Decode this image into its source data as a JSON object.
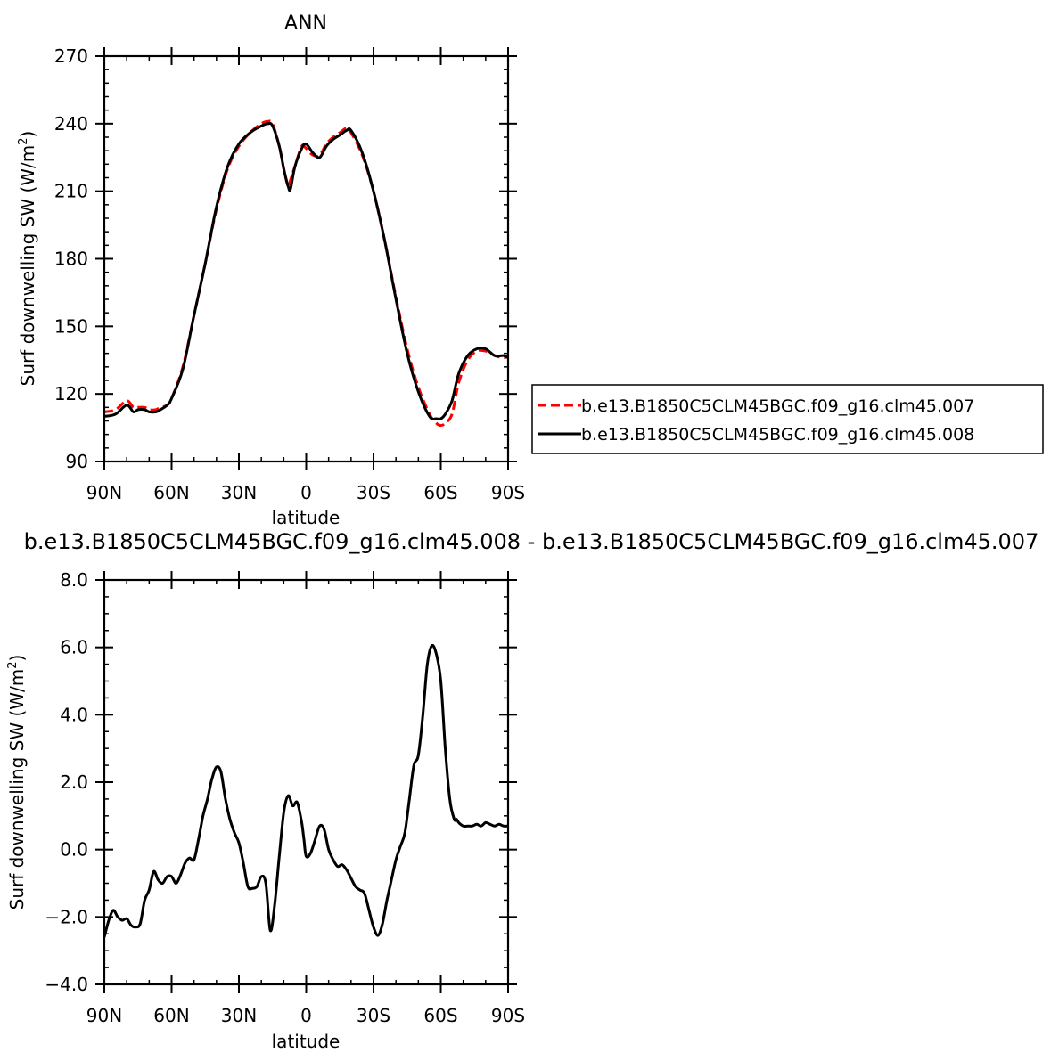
{
  "chart_data": [
    {
      "type": "line",
      "title": "ANN",
      "xlabel": "latitude",
      "ylabel_main": "Surf downwelling SW (W/m",
      "ylabel_sup": "2",
      "ylabel_tail": ")",
      "x_ticks": [
        90,
        60,
        30,
        0,
        -30,
        -60,
        -90
      ],
      "x_tick_labels": [
        "90N",
        "60N",
        "30N",
        "0",
        "30S",
        "60S",
        "90S"
      ],
      "xlim": [
        90,
        -90
      ],
      "ylim": [
        90,
        270
      ],
      "y_ticks": [
        90,
        120,
        150,
        180,
        210,
        240,
        270
      ],
      "y_tick_labels": [
        "90",
        "120",
        "150",
        "180",
        "210",
        "240",
        "270"
      ],
      "legend_position": "right",
      "series": [
        {
          "name": "b.e13.B1850C5CLM45BGC.f09_g16.clm45.007",
          "color": "#ff0000",
          "dash": "dashed",
          "x": [
            90,
            85,
            80,
            77,
            75,
            72,
            70,
            67,
            65,
            62,
            60,
            55,
            50,
            45,
            40,
            35,
            30,
            25,
            20,
            17,
            15,
            12,
            10,
            8,
            7,
            5,
            2,
            0,
            -3,
            -6,
            -9,
            -12,
            -15,
            -18,
            -20,
            -25,
            -30,
            -35,
            -40,
            -45,
            -50,
            -55,
            -58,
            -60,
            -62,
            -65,
            -68,
            -72,
            -76,
            -80,
            -84,
            -88,
            -90
          ],
          "y": [
            112,
            113,
            117,
            114,
            114,
            114,
            113,
            113,
            114,
            115,
            118,
            132,
            155,
            178,
            202,
            220,
            230,
            236,
            240,
            241,
            240,
            230,
            220,
            212,
            215,
            221,
            230,
            229,
            226,
            226,
            231,
            234,
            236,
            238,
            236,
            226,
            210,
            188,
            163,
            140,
            123,
            111,
            107,
            106,
            107,
            111,
            125,
            135,
            139,
            139,
            137,
            136,
            137
          ]
        },
        {
          "name": "b.e13.B1850C5CLM45BGC.f09_g16.clm45.008",
          "color": "#000000",
          "dash": "solid",
          "x": [
            90,
            85,
            80,
            77,
            75,
            72,
            70,
            67,
            65,
            62,
            60,
            55,
            50,
            45,
            40,
            35,
            30,
            25,
            20,
            17,
            15,
            12,
            10,
            8,
            7,
            5,
            2,
            0,
            -3,
            -6,
            -9,
            -12,
            -15,
            -18,
            -20,
            -25,
            -30,
            -35,
            -40,
            -45,
            -50,
            -55,
            -58,
            -60,
            -62,
            -65,
            -68,
            -72,
            -76,
            -80,
            -84,
            -88,
            -90
          ],
          "y": [
            110,
            111,
            115,
            112,
            113,
            113,
            112,
            112,
            113,
            115,
            118,
            131,
            155,
            178,
            203,
            221,
            231,
            236,
            239,
            240,
            239,
            230,
            220,
            212,
            211,
            221,
            229,
            231,
            227,
            225,
            230,
            233,
            235,
            237,
            237,
            227,
            210,
            188,
            162,
            138,
            121,
            110,
            109,
            109,
            111,
            117,
            129,
            137,
            140,
            140,
            137,
            137,
            136
          ]
        }
      ]
    },
    {
      "type": "line",
      "title": "b.e13.B1850C5CLM45BGC.f09_g16.clm45.008 - b.e13.B1850C5CLM45BGC.f09_g16.clm45.007",
      "xlabel": "latitude",
      "ylabel_main": "Surf downwelling SW (W/m",
      "ylabel_sup": "2",
      "ylabel_tail": ")",
      "x_ticks": [
        90,
        60,
        30,
        0,
        -30,
        -60,
        -90
      ],
      "x_tick_labels": [
        "90N",
        "60N",
        "30N",
        "0",
        "30S",
        "60S",
        "90S"
      ],
      "xlim": [
        90,
        -90
      ],
      "ylim": [
        -4,
        8
      ],
      "y_ticks": [
        -4,
        -2,
        0,
        2,
        4,
        6,
        8
      ],
      "y_tick_labels": [
        "−4.0",
        "−2.0",
        "0.0",
        "2.0",
        "4.0",
        "6.0",
        "8.0"
      ],
      "series": [
        {
          "name": "",
          "color": "#000000",
          "dash": "solid",
          "x": [
            90,
            88,
            86,
            84,
            82,
            80,
            78,
            76,
            74,
            72,
            70,
            68,
            66,
            64,
            62,
            60,
            58,
            56,
            54,
            52,
            50,
            48,
            46,
            44,
            42,
            40,
            38,
            36,
            34,
            32,
            30,
            28,
            26,
            24,
            22,
            20,
            18,
            16,
            14,
            12,
            10,
            8,
            6,
            4,
            2,
            1,
            0,
            -2,
            -4,
            -6,
            -8,
            -10,
            -12,
            -14,
            -16,
            -18,
            -20,
            -22,
            -24,
            -26,
            -28,
            -30,
            -32,
            -34,
            -36,
            -38,
            -40,
            -42,
            -44,
            -46,
            -48,
            -50,
            -52,
            -54,
            -56,
            -58,
            -60,
            -62,
            -64,
            -66,
            -67,
            -68,
            -70,
            -72,
            -74,
            -76,
            -78,
            -80,
            -82,
            -84,
            -86,
            -88,
            -90
          ],
          "y": [
            -2.6,
            -2.1,
            -1.8,
            -2.0,
            -2.1,
            -2.05,
            -2.25,
            -2.3,
            -2.2,
            -1.5,
            -1.2,
            -0.65,
            -0.9,
            -1.0,
            -0.8,
            -0.8,
            -1.0,
            -0.75,
            -0.4,
            -0.25,
            -0.3,
            0.3,
            1.0,
            1.5,
            2.1,
            2.45,
            2.3,
            1.5,
            0.9,
            0.5,
            0.2,
            -0.4,
            -1.1,
            -1.15,
            -1.1,
            -0.8,
            -1.0,
            -2.4,
            -1.6,
            -0.2,
            1.1,
            1.6,
            1.3,
            1.4,
            0.8,
            0.3,
            -0.2,
            -0.1,
            0.3,
            0.7,
            0.6,
            0.0,
            -0.3,
            -0.5,
            -0.45,
            -0.6,
            -0.85,
            -1.1,
            -1.2,
            -1.3,
            -1.8,
            -2.3,
            -2.55,
            -2.2,
            -1.5,
            -0.9,
            -0.3,
            0.1,
            0.5,
            1.5,
            2.5,
            2.8,
            4.0,
            5.5,
            6.05,
            5.8,
            5.0,
            3.0,
            1.5,
            0.9,
            0.9,
            0.8,
            0.7,
            0.7,
            0.7,
            0.75,
            0.7,
            0.8,
            0.75,
            0.7,
            0.75,
            0.7,
            0.7
          ]
        }
      ]
    }
  ]
}
